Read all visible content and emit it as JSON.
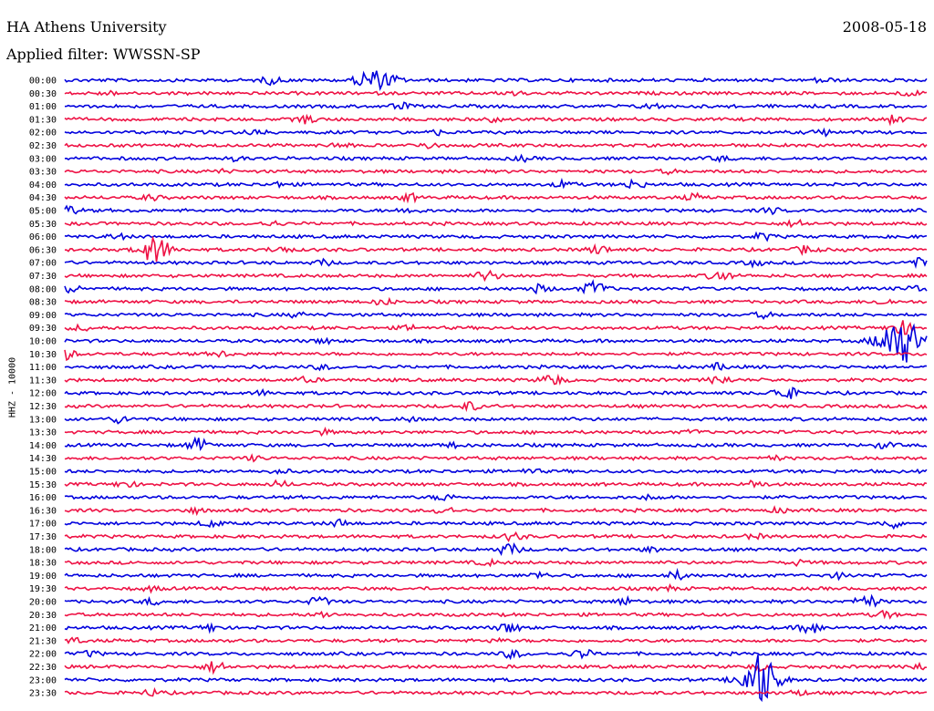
{
  "header": {
    "title": "HA Athens University",
    "date": "2008-05-18",
    "filter_label": "Applied filter: WWSSN-SP"
  },
  "chart_data": {
    "type": "line",
    "title": "HA Athens University",
    "subtitle": "Applied filter: WWSSN-SP",
    "date": "2008-05-18",
    "ylabel": "HHZ - 10000",
    "xlabel": "",
    "grid": false,
    "legend": "none",
    "colors": [
      "#0000dd",
      "#ee1144"
    ],
    "rows": [
      {
        "label": "00:00",
        "events": [
          [
            0.24,
            0.8
          ],
          [
            0.355,
            2.6
          ],
          [
            0.38,
            0.9
          ],
          [
            0.88,
            0.6
          ]
        ]
      },
      {
        "label": "00:30",
        "events": [
          [
            0.05,
            0.4
          ],
          [
            0.52,
            0.5
          ],
          [
            0.98,
            0.6
          ]
        ]
      },
      {
        "label": "01:00",
        "events": [
          [
            0.39,
            0.7
          ],
          [
            0.68,
            0.6
          ]
        ]
      },
      {
        "label": "01:30",
        "events": [
          [
            0.28,
            0.9
          ],
          [
            0.5,
            0.5
          ],
          [
            0.96,
            0.8
          ]
        ]
      },
      {
        "label": "02:00",
        "events": [
          [
            0.22,
            0.7
          ],
          [
            0.43,
            0.5
          ],
          [
            0.88,
            0.7
          ]
        ]
      },
      {
        "label": "02:30",
        "events": [
          [
            0.32,
            0.6
          ],
          [
            0.42,
            0.7
          ]
        ]
      },
      {
        "label": "03:00",
        "events": [
          [
            0.2,
            0.4
          ],
          [
            0.53,
            0.5
          ],
          [
            0.76,
            0.5
          ]
        ]
      },
      {
        "label": "03:30",
        "events": [
          [
            0.18,
            0.4
          ],
          [
            0.7,
            0.4
          ]
        ]
      },
      {
        "label": "04:00",
        "events": [
          [
            0.25,
            0.5
          ],
          [
            0.58,
            0.8
          ],
          [
            0.66,
            1.0
          ]
        ]
      },
      {
        "label": "04:30",
        "events": [
          [
            0.1,
            0.6
          ],
          [
            0.4,
            0.8
          ],
          [
            0.73,
            0.7
          ]
        ]
      },
      {
        "label": "05:00",
        "events": [
          [
            0.005,
            1.0
          ],
          [
            0.4,
            0.7
          ],
          [
            0.82,
            0.6
          ]
        ]
      },
      {
        "label": "05:30",
        "events": [
          [
            0.24,
            0.6
          ],
          [
            0.85,
            0.8
          ]
        ]
      },
      {
        "label": "06:00",
        "events": [
          [
            0.06,
            0.6
          ],
          [
            0.81,
            0.8
          ]
        ]
      },
      {
        "label": "06:30",
        "events": [
          [
            0.105,
            3.0
          ],
          [
            0.25,
            0.8
          ],
          [
            0.62,
            1.0
          ],
          [
            0.86,
            0.9
          ]
        ]
      },
      {
        "label": "07:00",
        "events": [
          [
            0.3,
            0.6
          ],
          [
            0.8,
            0.6
          ],
          [
            0.99,
            0.9
          ]
        ]
      },
      {
        "label": "07:30",
        "events": [
          [
            0.49,
            1.2
          ],
          [
            0.76,
            1.2
          ]
        ]
      },
      {
        "label": "08:00",
        "events": [
          [
            0.01,
            0.8
          ],
          [
            0.55,
            0.9
          ],
          [
            0.615,
            1.6
          ],
          [
            0.99,
            0.8
          ]
        ]
      },
      {
        "label": "08:30",
        "events": [
          [
            0.37,
            0.7
          ],
          [
            0.95,
            0.6
          ]
        ]
      },
      {
        "label": "09:00",
        "events": [
          [
            0.27,
            0.5
          ],
          [
            0.81,
            0.6
          ]
        ]
      },
      {
        "label": "09:30",
        "events": [
          [
            0.02,
            0.6
          ],
          [
            0.4,
            0.5
          ],
          [
            0.97,
            1.6
          ]
        ]
      },
      {
        "label": "10:00",
        "events": [
          [
            0.97,
            5.5
          ],
          [
            0.3,
            0.5
          ]
        ]
      },
      {
        "label": "10:30",
        "events": [
          [
            0.0,
            1.2
          ],
          [
            0.18,
            0.6
          ]
        ]
      },
      {
        "label": "11:00",
        "events": [
          [
            0.3,
            0.5
          ],
          [
            0.76,
            0.7
          ]
        ]
      },
      {
        "label": "11:30",
        "events": [
          [
            0.28,
            0.6
          ],
          [
            0.565,
            1.3
          ],
          [
            0.76,
            1.0
          ]
        ]
      },
      {
        "label": "12:00",
        "events": [
          [
            0.23,
            0.5
          ],
          [
            0.835,
            1.6
          ]
        ]
      },
      {
        "label": "12:30",
        "events": [
          [
            0.47,
            0.9
          ],
          [
            0.99,
            0.5
          ]
        ]
      },
      {
        "label": "13:00",
        "events": [
          [
            0.065,
            0.8
          ],
          [
            0.4,
            0.4
          ]
        ]
      },
      {
        "label": "13:30",
        "events": [
          [
            0.3,
            0.5
          ],
          [
            0.73,
            0.4
          ]
        ]
      },
      {
        "label": "14:00",
        "events": [
          [
            0.155,
            1.4
          ],
          [
            0.45,
            0.5
          ],
          [
            0.95,
            0.6
          ]
        ]
      },
      {
        "label": "14:30",
        "events": [
          [
            0.22,
            0.5
          ],
          [
            0.82,
            0.6
          ]
        ]
      },
      {
        "label": "15:00",
        "events": [
          [
            0.25,
            0.5
          ],
          [
            0.54,
            0.5
          ]
        ]
      },
      {
        "label": "15:30",
        "events": [
          [
            0.07,
            0.8
          ],
          [
            0.25,
            0.7
          ],
          [
            0.8,
            0.8
          ]
        ]
      },
      {
        "label": "16:00",
        "events": [
          [
            0.44,
            0.7
          ],
          [
            0.68,
            0.5
          ]
        ]
      },
      {
        "label": "16:30",
        "events": [
          [
            0.44,
            0.9
          ],
          [
            0.15,
            0.6
          ],
          [
            0.83,
            0.5
          ]
        ]
      },
      {
        "label": "17:00",
        "events": [
          [
            0.17,
            0.8
          ],
          [
            0.32,
            0.8
          ],
          [
            0.96,
            0.9
          ]
        ]
      },
      {
        "label": "17:30",
        "events": [
          [
            0.52,
            0.9
          ],
          [
            0.8,
            0.5
          ]
        ]
      },
      {
        "label": "18:00",
        "events": [
          [
            0.515,
            1.3
          ],
          [
            0.68,
            0.5
          ]
        ]
      },
      {
        "label": "18:30",
        "events": [
          [
            0.49,
            0.6
          ],
          [
            0.85,
            0.5
          ]
        ]
      },
      {
        "label": "19:00",
        "events": [
          [
            0.55,
            0.7
          ],
          [
            0.71,
            0.9
          ],
          [
            0.9,
            0.6
          ]
        ]
      },
      {
        "label": "19:30",
        "events": [
          [
            0.1,
            0.5
          ],
          [
            0.7,
            0.5
          ]
        ]
      },
      {
        "label": "20:00",
        "events": [
          [
            0.1,
            0.6
          ],
          [
            0.295,
            1.0
          ],
          [
            0.65,
            0.8
          ],
          [
            0.93,
            1.5
          ]
        ]
      },
      {
        "label": "20:30",
        "events": [
          [
            0.3,
            0.6
          ],
          [
            0.95,
            0.8
          ]
        ]
      },
      {
        "label": "21:00",
        "events": [
          [
            0.17,
            0.8
          ],
          [
            0.515,
            1.1
          ],
          [
            0.865,
            1.3
          ]
        ]
      },
      {
        "label": "21:30",
        "events": [
          [
            0.01,
            0.6
          ],
          [
            0.5,
            0.4
          ]
        ]
      },
      {
        "label": "22:00",
        "events": [
          [
            0.03,
            0.6
          ],
          [
            0.52,
            0.9
          ],
          [
            0.6,
            1.0
          ]
        ]
      },
      {
        "label": "22:30",
        "events": [
          [
            0.175,
            1.3
          ],
          [
            0.805,
            0.6
          ],
          [
            0.99,
            0.7
          ]
        ]
      },
      {
        "label": "23:00",
        "events": [
          [
            0.805,
            4.5
          ],
          [
            0.81,
            2.0
          ]
        ]
      },
      {
        "label": "23:30",
        "events": [
          [
            0.1,
            0.7
          ],
          [
            0.85,
            0.6
          ]
        ]
      }
    ]
  }
}
